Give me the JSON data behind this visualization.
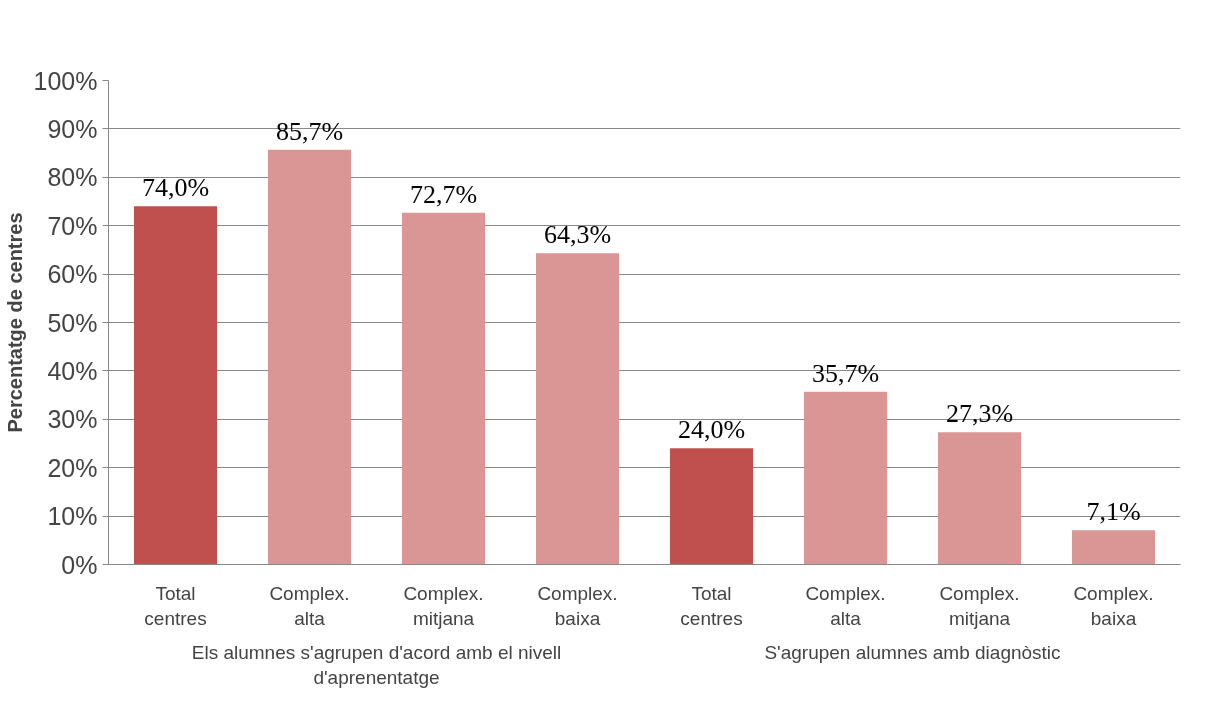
{
  "chart_data": {
    "type": "bar",
    "ylabel": "Percentatge de centres",
    "categories": [
      "Total centres",
      "Complex. alta",
      "Complex. mitjana",
      "Complex. baixa",
      "Total centres",
      "Complex. alta",
      "Complex. mitjana",
      "Complex. baixa"
    ],
    "values": [
      74.0,
      85.7,
      72.7,
      64.3,
      24.0,
      35.7,
      27.3,
      7.1
    ],
    "value_labels": [
      "74,0%",
      "85,7%",
      "72,7%",
      "64,3%",
      "24,0%",
      "35,7%",
      "27,3%",
      "7,1%"
    ],
    "colors": [
      "#c0504d",
      "#d99694",
      "#d99694",
      "#d99694",
      "#c0504d",
      "#d99694",
      "#d99694",
      "#d99694"
    ],
    "ylim": [
      0,
      100
    ],
    "yticks": [
      {
        "value": 0,
        "label": "0%"
      },
      {
        "value": 10,
        "label": "10%"
      },
      {
        "value": 20,
        "label": "20%"
      },
      {
        "value": 30,
        "label": "30%"
      },
      {
        "value": 40,
        "label": "40%"
      },
      {
        "value": 50,
        "label": "50%"
      },
      {
        "value": 60,
        "label": "60%"
      },
      {
        "value": 70,
        "label": "70%"
      },
      {
        "value": 80,
        "label": "80%"
      },
      {
        "value": 90,
        "label": "90%"
      },
      {
        "value": 100,
        "label": "100%"
      }
    ],
    "grid": "y",
    "annotations": [
      "Els alumnes s'agrupen d'acord amb el nivell d'aprenentatge",
      "S'agrupen alumnes amb diagnòstic"
    ]
  }
}
